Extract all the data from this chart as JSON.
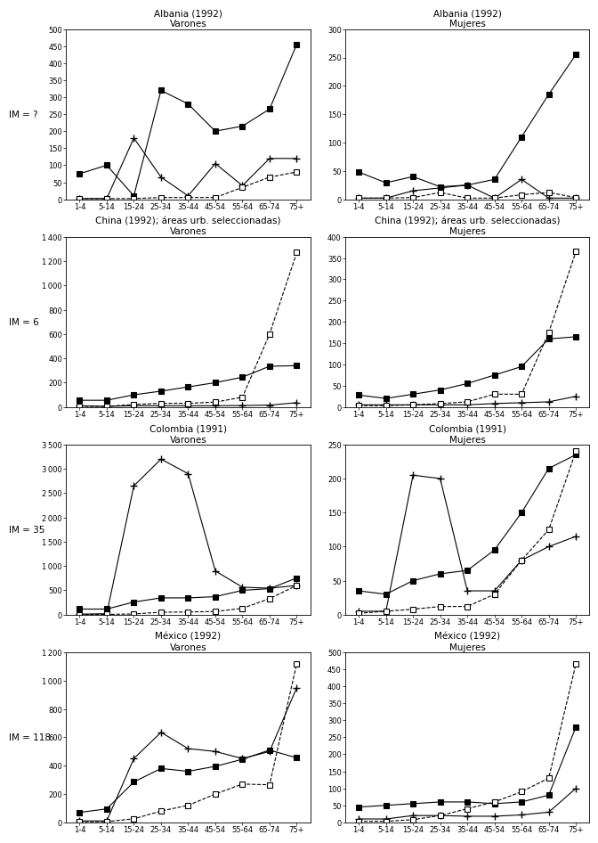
{
  "x_labels": [
    "1-4",
    "5-14",
    "15-24",
    "25-34",
    "35-44",
    "45-54",
    "55-64",
    "65-74",
    "75+"
  ],
  "panels": [
    {
      "title": "Albania (1992)\nVarones",
      "im_label": "IM = ?",
      "ylim": [
        0,
        500
      ],
      "yticks": [
        0,
        50,
        100,
        150,
        200,
        250,
        300,
        350,
        400,
        450,
        500
      ],
      "traffic": [
        75,
        100,
        10,
        320,
        280,
        200,
        215,
        265,
        455
      ],
      "homicide": [
        2,
        2,
        180,
        65,
        10,
        105,
        40,
        120,
        120
      ],
      "tuberculosis": [
        2,
        2,
        2,
        5,
        5,
        5,
        35,
        65,
        80
      ]
    },
    {
      "title": "Albania (1992)\nMujeres",
      "im_label": null,
      "ylim": [
        0,
        300
      ],
      "yticks": [
        0,
        50,
        100,
        150,
        200,
        250,
        300
      ],
      "traffic": [
        48,
        29,
        40,
        22,
        25,
        35,
        110,
        185,
        255
      ],
      "homicide": [
        2,
        2,
        15,
        20,
        25,
        2,
        35,
        2,
        2
      ],
      "tuberculosis": [
        2,
        2,
        3,
        12,
        2,
        2,
        8,
        12,
        3
      ]
    },
    {
      "title": "China (1992); áreas urb. seleccionadas)\nVarones",
      "im_label": "IM = 6",
      "ylim": [
        0,
        1400
      ],
      "yticks": [
        0,
        200,
        400,
        600,
        800,
        1000,
        1200,
        1400
      ],
      "traffic": [
        55,
        55,
        100,
        130,
        165,
        200,
        245,
        335,
        340
      ],
      "homicide": [
        10,
        5,
        10,
        10,
        10,
        10,
        12,
        15,
        35
      ],
      "tuberculosis": [
        5,
        5,
        20,
        30,
        30,
        40,
        80,
        600,
        1270
      ]
    },
    {
      "title": "China (1992); áreas urb. seleccionadas)\nMujeres",
      "im_label": null,
      "ylim": [
        0,
        400
      ],
      "yticks": [
        0,
        50,
        100,
        150,
        200,
        250,
        300,
        350,
        400
      ],
      "traffic": [
        28,
        20,
        30,
        40,
        55,
        75,
        95,
        160,
        165
      ],
      "homicide": [
        5,
        5,
        5,
        5,
        5,
        8,
        10,
        12,
        25
      ],
      "tuberculosis": [
        3,
        3,
        5,
        8,
        12,
        30,
        30,
        175,
        365
      ]
    },
    {
      "title": "Colombia (1991)\nVarones",
      "im_label": "IM = 35",
      "ylim": [
        0,
        3500
      ],
      "yticks": [
        0,
        500,
        1000,
        1500,
        2000,
        2500,
        3000,
        3500
      ],
      "traffic": [
        115,
        115,
        260,
        345,
        345,
        370,
        500,
        535,
        755
      ],
      "homicide": [
        10,
        20,
        2650,
        3200,
        2900,
        900,
        565,
        545,
        600
      ],
      "tuberculosis": [
        2,
        5,
        15,
        50,
        55,
        65,
        130,
        330,
        600
      ]
    },
    {
      "title": "Colombia (1991)\nMujeres",
      "im_label": null,
      "ylim": [
        0,
        250
      ],
      "yticks": [
        0,
        50,
        100,
        150,
        200,
        250
      ],
      "traffic": [
        35,
        30,
        50,
        60,
        65,
        95,
        150,
        215,
        235
      ],
      "homicide": [
        5,
        5,
        205,
        200,
        35,
        35,
        80,
        100,
        115
      ],
      "tuberculosis": [
        2,
        5,
        8,
        12,
        12,
        30,
        80,
        125,
        240
      ]
    },
    {
      "title": "México (1992)\nVarones",
      "im_label": "IM = 118",
      "ylim": [
        0,
        1200
      ],
      "yticks": [
        0,
        200,
        400,
        600,
        800,
        1000,
        1200
      ],
      "traffic": [
        70,
        95,
        285,
        380,
        360,
        395,
        445,
        510,
        455
      ],
      "homicide": [
        10,
        10,
        450,
        635,
        520,
        500,
        450,
        500,
        950
      ],
      "tuberculosis": [
        5,
        5,
        25,
        80,
        120,
        200,
        270,
        265,
        1120
      ]
    },
    {
      "title": "México (1992)\nMujeres",
      "im_label": null,
      "ylim": [
        0,
        500
      ],
      "yticks": [
        0,
        50,
        100,
        150,
        200,
        250,
        300,
        350,
        400,
        450,
        500
      ],
      "traffic": [
        45,
        50,
        55,
        60,
        60,
        55,
        60,
        80,
        280
      ],
      "homicide": [
        10,
        10,
        20,
        20,
        18,
        18,
        22,
        30,
        100
      ],
      "tuberculosis": [
        3,
        3,
        8,
        20,
        40,
        60,
        90,
        130,
        465
      ]
    }
  ],
  "line_styles": {
    "traffic": {
      "color": "black",
      "marker": "s",
      "markersize": 4,
      "linestyle": "-",
      "markerfacecolor": "black",
      "linewidth": 0.8
    },
    "homicide": {
      "color": "black",
      "marker": "+",
      "markersize": 6,
      "linestyle": "-",
      "markerfacecolor": "black",
      "linewidth": 0.8
    },
    "tuberculosis": {
      "color": "black",
      "marker": "s",
      "markersize": 4,
      "linestyle": "--",
      "markerfacecolor": "white",
      "linewidth": 0.8
    }
  },
  "figure_bgcolor": "white",
  "axes_bgcolor": "white"
}
